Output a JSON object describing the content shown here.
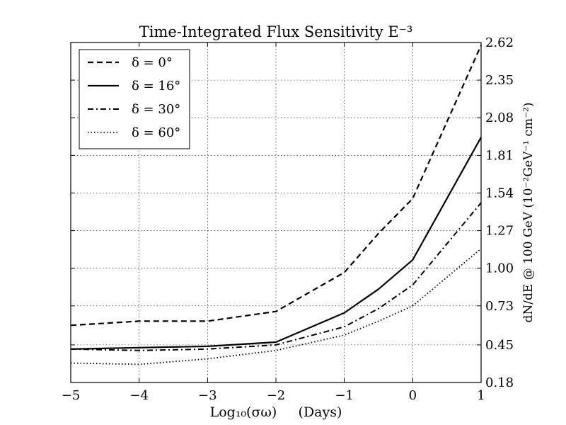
{
  "chart_data": {
    "type": "line",
    "title": "Time-Integrated Flux Sensitivity E⁻³",
    "xlabel": "Log₁₀(σω)     (Days)",
    "ylabel": "dN/dE @ 100 GeV (10⁻²GeV⁻¹ cm⁻²)",
    "xlim": [
      -5,
      1
    ],
    "ylim": [
      0.18,
      2.62
    ],
    "xticks": [
      -5,
      -4,
      -3,
      -2,
      -1,
      0,
      1
    ],
    "xtick_labels": [
      "−5",
      "−4",
      "−3",
      "−2",
      "−1",
      "0",
      "1"
    ],
    "yticks": [
      0.18,
      0.45,
      0.73,
      1.0,
      1.27,
      1.54,
      1.81,
      2.08,
      2.35,
      2.62
    ],
    "ytick_labels": [
      "0.18",
      "0.45",
      "0.73",
      "1.00",
      "1.27",
      "1.54",
      "1.81",
      "2.08",
      "2.35",
      "2.62"
    ],
    "y_axis_side": "right",
    "grid": true,
    "legend_position": "top-left",
    "series": [
      {
        "name": "δ = 0°",
        "style": "dashed",
        "x": [
          -5,
          -4,
          -3,
          -2,
          -1,
          -0.5,
          0,
          1
        ],
        "y": [
          0.59,
          0.62,
          0.62,
          0.69,
          0.97,
          1.25,
          1.5,
          2.6
        ]
      },
      {
        "name": "δ = 16°",
        "style": "solid",
        "x": [
          -5,
          -4,
          -3,
          -2,
          -1,
          -0.5,
          0,
          1
        ],
        "y": [
          0.42,
          0.43,
          0.44,
          0.47,
          0.68,
          0.85,
          1.06,
          1.94
        ]
      },
      {
        "name": "δ = 30°",
        "style": "dashdot",
        "x": [
          -5,
          -4,
          -3,
          -2,
          -1,
          -0.5,
          0,
          1
        ],
        "y": [
          0.42,
          0.41,
          0.42,
          0.45,
          0.58,
          0.71,
          0.88,
          1.47
        ]
      },
      {
        "name": "δ = 60°",
        "style": "dotted",
        "x": [
          -5,
          -4,
          -3,
          -2,
          -1,
          -0.5,
          0,
          1
        ],
        "y": [
          0.32,
          0.31,
          0.35,
          0.41,
          0.52,
          0.62,
          0.73,
          1.14
        ]
      }
    ]
  }
}
